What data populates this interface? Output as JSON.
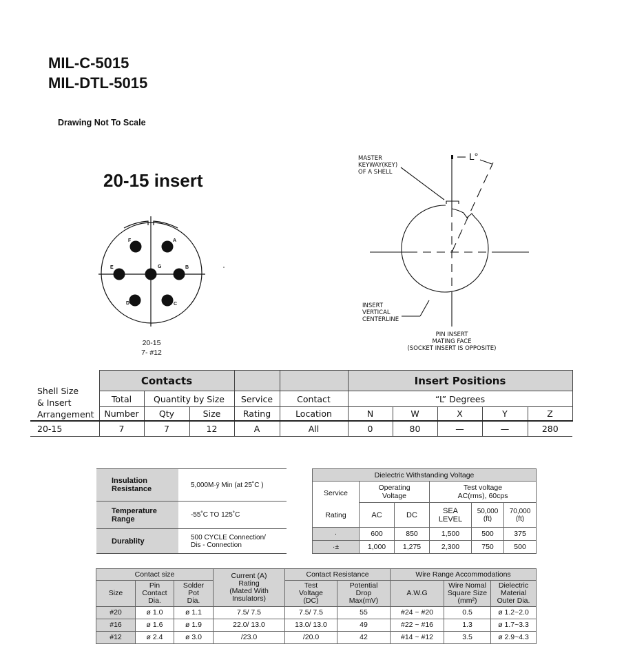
{
  "header": {
    "title_1": "MIL-C-5015",
    "title_2": "MIL-DTL-5015",
    "note": "Drawing Not To Scale"
  },
  "insert": {
    "title": "20-15 insert",
    "arrangement": "20-15",
    "contacts": "7- #12",
    "pins": [
      {
        "label": "F"
      },
      {
        "label": "A"
      },
      {
        "label": "E"
      },
      {
        "label": "G"
      },
      {
        "label": "B"
      },
      {
        "label": "D"
      },
      {
        "label": "C"
      }
    ]
  },
  "orientation_diagram": {
    "angle_label": "L°",
    "keyway_label": [
      "MASTER",
      "KEYWAY(KEY)",
      "OF A SHELL"
    ],
    "centerline_label": [
      "INSERT",
      "VERTICAL",
      "CENTERLINE"
    ],
    "face_label": [
      "PIN INSERT",
      "MATING FACE",
      "(SOCKET INSERT IS OPPOSITE)"
    ]
  },
  "arrangement_table": {
    "h_shell": [
      "Shell Size",
      "& Insert",
      "Arrangement"
    ],
    "h_contacts": "Contacts",
    "h_insert_positions": "Insert Positions",
    "h_total": "Total",
    "h_number": "Number",
    "h_qty_by_size": "Quantity by Size",
    "h_qty": "Qty",
    "h_size": "Size",
    "h_service": "Service",
    "h_rating": "Rating",
    "h_contact": "Contact",
    "h_location": "Location",
    "h_degrees": "“L” Degrees",
    "positions": [
      "N",
      "W",
      "X",
      "Y",
      "Z"
    ],
    "row": {
      "arrangement": "20-15",
      "total": "7",
      "qty": "7",
      "size": "12",
      "rating": "A",
      "location": "All",
      "values": [
        "0",
        "80",
        "—",
        "—",
        "280"
      ]
    }
  },
  "properties_table": [
    {
      "label": [
        "Insulation",
        "Resistance"
      ],
      "value": [
        "5,000M·ÿ  Min  (at 25˚C )"
      ]
    },
    {
      "label": [
        "Temperature",
        "Range"
      ],
      "value": [
        "-55˚C  TO  125˚C"
      ]
    },
    {
      "label": [
        "Durablity"
      ],
      "value": [
        "500 CYCLE Connection/",
        "Dis - Connection"
      ]
    }
  ],
  "dielectric_table": {
    "title": "Dielectric Withstanding Voltage",
    "h_service": "Service",
    "h_rating": "Rating",
    "h_operating": [
      "Operating",
      "Voltage"
    ],
    "h_test": [
      "Test voltage",
      "AC(rms), 60cps"
    ],
    "cols": [
      [
        "AC"
      ],
      [
        "DC"
      ],
      [
        "SEA",
        "LEVEL"
      ],
      [
        "50,000",
        "(ft)"
      ],
      [
        "70,000",
        "(ft)"
      ]
    ],
    "rows": [
      [
        "·",
        "600",
        "850",
        "1,500",
        "500",
        "375"
      ],
      [
        "·±",
        "1,000",
        "1,275",
        "2,300",
        "750",
        "500"
      ]
    ]
  },
  "contact_table": {
    "h_contact_size": "Contact size",
    "h_current": [
      "Current (A)",
      "Rating",
      "(Mated With",
      "Insulators)"
    ],
    "h_contact_resistance": "Contact Resistance",
    "h_wire_range": "Wire Range Accommodations",
    "h_size": "Size",
    "h_pin": [
      "Pin",
      "Contact",
      "Dia."
    ],
    "h_solder": [
      "Solder",
      "Pot",
      "Dia."
    ],
    "h_test_voltage": [
      "Test",
      "Voltage",
      "(DC)"
    ],
    "h_drop": [
      "Potential",
      "Drop",
      "Max(mV)"
    ],
    "h_awg": "A.W.G",
    "h_square": [
      "Wire Nomal",
      "Square Size",
      "(mm²)"
    ],
    "h_dielectric": [
      "Dielectric",
      "Material",
      "Outer Dia."
    ],
    "rows": [
      [
        "#20",
        "ø 1.0",
        "ø 1.1",
        "7.5/ 7.5",
        "7.5/ 7.5",
        "55",
        "#24 ~ #20",
        "0.5",
        "ø 1.2~2.0"
      ],
      [
        "#16",
        "ø 1.6",
        "ø 1.9",
        "22.0/ 13.0",
        "13.0/ 13.0",
        "49",
        "#22 ~ #16",
        "1.3",
        "ø 1.7~3.3"
      ],
      [
        "#12",
        "ø 2.4",
        "ø 3.0",
        "/23.0",
        "/20.0",
        "42",
        "#14 ~ #12",
        "3.5",
        "ø 2.9~4.3"
      ]
    ]
  }
}
